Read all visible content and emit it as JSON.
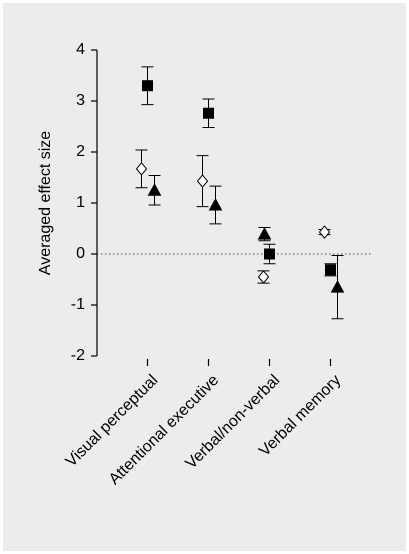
{
  "chart_data": {
    "type": "errorbar",
    "y_label": "Averaged effect size",
    "categories": [
      "Visual perceptual",
      "Attentional executive",
      "Verbal/non-verbal",
      "Verbal memory"
    ],
    "series": [
      {
        "marker": "square",
        "color": "#000000",
        "values": [
          3.3,
          2.76,
          0.0,
          -0.31
        ],
        "errors": [
          0.37,
          0.28,
          0.19,
          0.12
        ]
      },
      {
        "marker": "diamond",
        "color": "#ffffff",
        "values": [
          1.67,
          1.43,
          -0.45,
          0.43
        ],
        "errors": [
          0.37,
          0.5,
          0.12,
          0.05
        ]
      },
      {
        "marker": "triangle",
        "color": "#000000",
        "values": [
          1.25,
          0.96,
          0.39,
          -0.65
        ],
        "errors": [
          0.29,
          0.37,
          0.13,
          0.62
        ]
      }
    ],
    "ylim": [
      -2,
      4
    ],
    "yticks": [
      -2,
      -1,
      0,
      1,
      2,
      3,
      4
    ],
    "zero_line": true
  }
}
